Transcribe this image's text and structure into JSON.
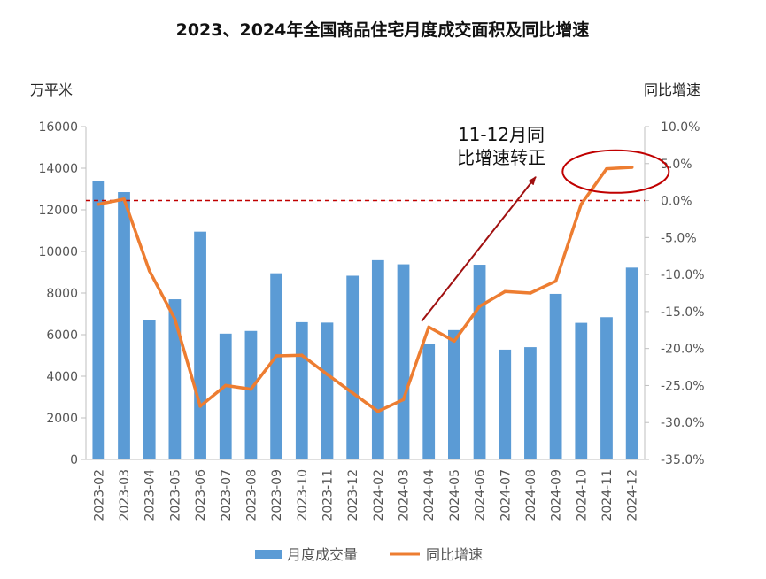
{
  "chart_data": {
    "type": "bar",
    "title": "2023、2024年全国商品住宅月度成交面积及同比增速",
    "y_left_unit": "万平米",
    "y_right_unit": "同比增速",
    "categories": [
      "2023-02",
      "2023-03",
      "2023-04",
      "2023-05",
      "2023-06",
      "2023-07",
      "2023-08",
      "2023-09",
      "2023-10",
      "2023-11",
      "2023-12",
      "2024-02",
      "2024-03",
      "2024-04",
      "2024-05",
      "2024-06",
      "2024-07",
      "2024-08",
      "2024-09",
      "2024-10",
      "2024-11",
      "2024-12"
    ],
    "series": [
      {
        "name": "月度成交量",
        "type": "bar",
        "axis": "left",
        "color": "#5b9bd5",
        "values": [
          13400,
          12850,
          6700,
          7700,
          10950,
          6050,
          6180,
          8950,
          6600,
          6580,
          8830,
          9580,
          9380,
          5570,
          6220,
          9360,
          5280,
          5400,
          7960,
          6570,
          6840,
          9220
        ]
      },
      {
        "name": "同比增速",
        "type": "line",
        "axis": "right",
        "color": "#ed7d31",
        "values": [
          -0.5,
          0.2,
          -9.5,
          -16.0,
          -27.8,
          -25.0,
          -25.5,
          -21.0,
          -20.9,
          -23.5,
          -26.0,
          -28.5,
          -26.9,
          -17.1,
          -19.0,
          -14.3,
          -12.3,
          -12.5,
          -10.9,
          -0.5,
          4.3,
          4.5
        ]
      }
    ],
    "y_left": {
      "min": 0,
      "max": 16000,
      "ticks": [
        "0",
        "2000",
        "4000",
        "6000",
        "8000",
        "10000",
        "12000",
        "14000",
        "16000"
      ]
    },
    "y_right": {
      "min": -35,
      "max": 10,
      "ticks": [
        "-35.0%",
        "-30.0%",
        "-25.0%",
        "-20.0%",
        "-15.0%",
        "-10.0%",
        "-5.0%",
        "0.0%",
        "5.0%",
        "10.0%"
      ]
    },
    "reference_line": {
      "axis": "right",
      "value": 0,
      "color": "#c00000",
      "style": "dashed"
    },
    "annotation": {
      "lines": [
        "11-12月同",
        "比增速转正"
      ],
      "ellipse_color": "#c00000",
      "arrow_color": "#a01010"
    },
    "legend_position": "bottom",
    "grid": false
  }
}
